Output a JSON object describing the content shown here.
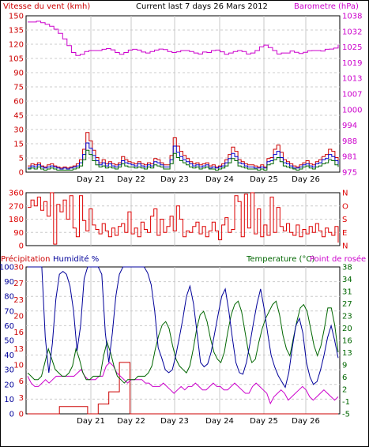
{
  "header": {
    "wind_label": "Vitesse du vent (kmh)",
    "title": "Current last 7 days 26 Mars 2012",
    "baro_label": "Barometre (hPa)"
  },
  "labels": {
    "precip": "Précipitation",
    "humid": "Humidité %",
    "temp": "Temperature (°C)",
    "dew": "Point de rosée"
  },
  "colors": {
    "wind_axis": "#cc0000",
    "baro": "#cc00cc",
    "wind_green": "#006600",
    "wind_blue": "#0000cc",
    "wind_red": "#cc0000",
    "dir": "#dd0000",
    "humidity": "#000099",
    "temperature": "#006600",
    "dewpoint": "#cc00cc",
    "rain": "#cc0000",
    "grid": "#cccccc"
  },
  "chart_data": [
    {
      "type": "line",
      "title": "Current last 7 days 26 Mars 2012",
      "x_ticks": [
        "Day 21",
        "Day 22",
        "Day 23",
        "Day 24",
        "Day 25",
        "Day 26"
      ],
      "y_left": {
        "label": "Vitesse du vent (kmh)",
        "ticks": [
          "0",
          "5",
          "15",
          "30",
          "45",
          "60",
          "75",
          "90",
          "105",
          "120",
          "135",
          "150"
        ],
        "ylim": [
          0,
          150
        ]
      },
      "y_right": {
        "label": "Barometre (hPa)",
        "ticks": [
          "975",
          "981",
          "988",
          "994",
          "1000",
          "1007",
          "1013",
          "1019",
          "1025",
          "1032",
          "1038"
        ],
        "ylim": [
          975,
          1038
        ]
      },
      "series": [
        {
          "name": "Barometre",
          "axis": "right",
          "values": [
            1035.5,
            1035.5,
            1035.8,
            1035.2,
            1034.6,
            1033.8,
            1032.6,
            1030.9,
            1028.7,
            1026.0,
            1023.2,
            1022.0,
            1022.5,
            1023.6,
            1024.0,
            1024.0,
            1024.0,
            1024.5,
            1024.8,
            1024.3,
            1023.2,
            1022.5,
            1023.2,
            1024.2,
            1024.5,
            1024.2,
            1023.4,
            1023.0,
            1023.6,
            1024.2,
            1024.6,
            1024.4,
            1023.6,
            1023.2,
            1023.5,
            1024.0,
            1024.0,
            1023.6,
            1023.0,
            1022.6,
            1023.4,
            1023.2,
            1024.0,
            1024.2,
            1023.5,
            1022.5,
            1023.0,
            1023.6,
            1024.0,
            1023.6,
            1022.6,
            1023.0,
            1024.0,
            1025.5,
            1026.2,
            1025.2,
            1024.0,
            1022.6,
            1023.0,
            1023.0,
            1023.8,
            1023.3,
            1022.8,
            1023.3,
            1023.9,
            1024.0,
            1024.0,
            1023.8,
            1024.5,
            1024.6,
            1025.0,
            1026.4
          ]
        },
        {
          "name": "wind_gust",
          "axis": "left",
          "values": [
            6,
            8,
            7,
            9,
            6,
            5,
            7,
            8,
            6,
            5,
            4,
            5,
            4,
            5,
            6,
            8,
            12,
            22,
            38,
            30,
            21,
            14,
            9,
            12,
            8,
            10,
            8,
            7,
            9,
            15,
            12,
            10,
            9,
            8,
            10,
            8,
            7,
            9,
            8,
            13,
            12,
            9,
            7,
            7,
            16,
            33,
            25,
            20,
            16,
            13,
            10,
            8,
            9,
            7,
            8,
            9,
            6,
            7,
            5,
            6,
            8,
            12,
            17,
            24,
            20,
            12,
            10,
            8,
            7,
            7,
            6,
            5,
            7,
            5,
            13,
            14,
            22,
            26,
            19,
            12,
            10,
            8,
            6,
            5,
            7,
            9,
            11,
            8,
            7,
            10,
            12,
            15,
            17,
            22,
            20,
            14,
            9
          ]
        },
        {
          "name": "wind_avg_high",
          "axis": "left",
          "values": [
            4,
            6,
            5,
            7,
            5,
            4,
            5,
            6,
            5,
            4,
            3,
            4,
            3,
            4,
            5,
            6,
            9,
            17,
            28,
            23,
            16,
            11,
            7,
            9,
            6,
            8,
            6,
            5,
            7,
            11,
            9,
            8,
            7,
            6,
            8,
            6,
            5,
            7,
            6,
            10,
            9,
            7,
            5,
            5,
            12,
            25,
            19,
            15,
            12,
            10,
            8,
            6,
            7,
            5,
            6,
            7,
            4,
            5,
            4,
            5,
            6,
            9,
            13,
            18,
            15,
            9,
            8,
            6,
            5,
            5,
            4,
            4,
            5,
            4,
            10,
            11,
            17,
            20,
            14,
            9,
            8,
            6,
            4,
            4,
            5,
            7,
            8,
            6,
            5,
            8,
            9,
            12,
            13,
            17,
            15,
            11,
            7
          ]
        },
        {
          "name": "wind_avg",
          "axis": "left",
          "values": [
            3,
            4,
            3,
            5,
            3,
            2,
            3,
            4,
            3,
            2,
            2,
            2,
            2,
            2,
            3,
            4,
            6,
            12,
            21,
            17,
            11,
            7,
            5,
            6,
            4,
            5,
            4,
            3,
            5,
            8,
            6,
            5,
            5,
            4,
            5,
            4,
            3,
            5,
            4,
            7,
            6,
            5,
            3,
            3,
            8,
            18,
            14,
            11,
            9,
            7,
            5,
            4,
            5,
            3,
            4,
            5,
            3,
            3,
            2,
            3,
            4,
            6,
            9,
            13,
            11,
            6,
            5,
            4,
            3,
            3,
            3,
            2,
            3,
            2,
            7,
            8,
            12,
            14,
            10,
            6,
            5,
            4,
            3,
            2,
            3,
            5,
            6,
            4,
            3,
            5,
            6,
            8,
            9,
            12,
            11,
            7,
            5
          ]
        }
      ]
    },
    {
      "type": "line",
      "y_left": {
        "ticks": [
          "0",
          "90",
          "180",
          "270",
          "360"
        ],
        "ylim": [
          0,
          360
        ]
      },
      "y_right": {
        "ticks": [
          "N",
          "E",
          "S",
          "O",
          "N"
        ]
      },
      "series": [
        {
          "name": "direction",
          "values": [
            260,
            310,
            270,
            330,
            240,
            300,
            200,
            360,
            10,
            280,
            230,
            310,
            180,
            340,
            120,
            60,
            340,
            170,
            100,
            250,
            140,
            110,
            80,
            150,
            100,
            60,
            120,
            70,
            130,
            150,
            90,
            230,
            80,
            120,
            60,
            160,
            110,
            90,
            200,
            250,
            70,
            180,
            90,
            130,
            200,
            100,
            270,
            180,
            60,
            100,
            90,
            130,
            160,
            80,
            130,
            60,
            100,
            160,
            100,
            40,
            140,
            190,
            90,
            110,
            340,
            300,
            60,
            350,
            120,
            360,
            80,
            250,
            60,
            140,
            70,
            330,
            90,
            260,
            130,
            100,
            150,
            90,
            70,
            140,
            60,
            110,
            80,
            130,
            90,
            150,
            100,
            60,
            120,
            90,
            70,
            130,
            20
          ]
        }
      ]
    },
    {
      "type": "line",
      "x_ticks": [
        "Day 21",
        "Day 22",
        "Day 23",
        "Day 24",
        "Day 25",
        "Day 26"
      ],
      "y_left": {
        "label": "Humidité %",
        "ticks": [
          "0",
          "10",
          "20",
          "30",
          "40",
          "50",
          "60",
          "70",
          "80",
          "90",
          "100"
        ],
        "ylim": [
          0,
          100
        ]
      },
      "y_left_precip": {
        "label": "Précipitation",
        "ticks": [
          "0",
          "3",
          "6",
          "10",
          "13",
          "16",
          "20",
          "23",
          "27",
          "30"
        ]
      },
      "y_right": {
        "label": "Temperature (°C)",
        "ticks": [
          "-5",
          "-1",
          "2",
          "6",
          "9",
          "13",
          "16",
          "20",
          "23",
          "27",
          "31",
          "34",
          "38"
        ],
        "ylim": [
          -5,
          38
        ]
      },
      "series": [
        {
          "name": "Humidité %",
          "axis": "left",
          "values": [
            100,
            100,
            100,
            100,
            100,
            52,
            28,
            48,
            78,
            95,
            97,
            95,
            87,
            70,
            43,
            60,
            92,
            100,
            100,
            100,
            100,
            95,
            55,
            35,
            55,
            80,
            95,
            100,
            100,
            100,
            100,
            100,
            100,
            100,
            96,
            88,
            70,
            45,
            38,
            30,
            28,
            30,
            40,
            52,
            65,
            80,
            87,
            75,
            55,
            35,
            32,
            34,
            42,
            55,
            68,
            80,
            85,
            70,
            52,
            35,
            28,
            27,
            35,
            48,
            62,
            75,
            85,
            72,
            55,
            40,
            32,
            26,
            22,
            18,
            28,
            45,
            60,
            65,
            55,
            35,
            25,
            20,
            22,
            30,
            40,
            52,
            60,
            50,
            38
          ]
        },
        {
          "name": "Temperature (°C)",
          "axis": "right",
          "values": [
            7,
            6,
            5,
            5,
            6,
            10,
            14,
            11,
            8,
            7,
            6,
            6,
            7,
            9,
            14,
            11,
            7,
            5,
            5,
            6,
            6,
            6,
            12,
            16,
            13,
            9,
            6,
            5,
            4,
            5,
            5,
            5,
            6,
            6,
            6,
            7,
            9,
            14,
            18,
            21,
            22,
            20,
            15,
            11,
            9,
            8,
            7,
            9,
            14,
            20,
            24,
            25,
            22,
            17,
            13,
            11,
            10,
            13,
            19,
            24,
            27,
            28,
            25,
            19,
            13,
            10,
            11,
            16,
            20,
            23,
            25,
            27,
            28,
            24,
            18,
            14,
            12,
            17,
            22,
            26,
            27,
            25,
            20,
            15,
            12,
            15,
            20,
            26,
            26,
            21,
            13
          ]
        },
        {
          "name": "Point de rosée",
          "axis": "right",
          "values": [
            6,
            4,
            3,
            3,
            4,
            5,
            4,
            5,
            6,
            6,
            6,
            6,
            6,
            6,
            7,
            8,
            6,
            5,
            5,
            5,
            6,
            6,
            9,
            10,
            9,
            7,
            6,
            5,
            4,
            5,
            5,
            5,
            5,
            4,
            4,
            3,
            3,
            3,
            4,
            3,
            2,
            1,
            2,
            3,
            2,
            3,
            3,
            4,
            3,
            2,
            2,
            3,
            4,
            3,
            3,
            2,
            2,
            3,
            4,
            3,
            2,
            1,
            1,
            3,
            4,
            3,
            2,
            1,
            -2,
            0,
            1,
            2,
            1,
            -1,
            0,
            1,
            2,
            3,
            2,
            0,
            -1,
            0,
            1,
            2,
            1,
            0,
            -1,
            0
          ]
        },
        {
          "name": "Précipitation",
          "axis": "left_precip",
          "values": [
            0,
            0,
            0,
            0,
            0,
            0,
            0,
            0,
            0,
            1.5,
            1.5,
            1.5,
            1.5,
            1.5,
            1.5,
            1.5,
            1.5,
            0,
            0,
            0,
            2,
            2,
            2,
            4.5,
            4.5,
            4.5,
            10.5,
            10.5,
            10.5,
            0,
            0,
            0,
            0,
            0,
            0,
            0,
            0,
            0,
            0,
            0,
            0,
            0,
            0,
            0,
            0,
            0,
            0,
            0,
            0,
            0,
            0,
            0,
            0,
            0,
            0,
            0,
            0,
            0,
            0,
            0,
            0,
            0,
            0,
            0,
            0,
            0,
            0,
            0,
            0,
            0,
            0,
            0,
            0,
            0,
            0,
            0,
            0,
            0,
            0,
            0,
            0,
            0,
            0,
            0,
            0,
            0,
            0,
            0,
            0
          ]
        }
      ]
    }
  ]
}
